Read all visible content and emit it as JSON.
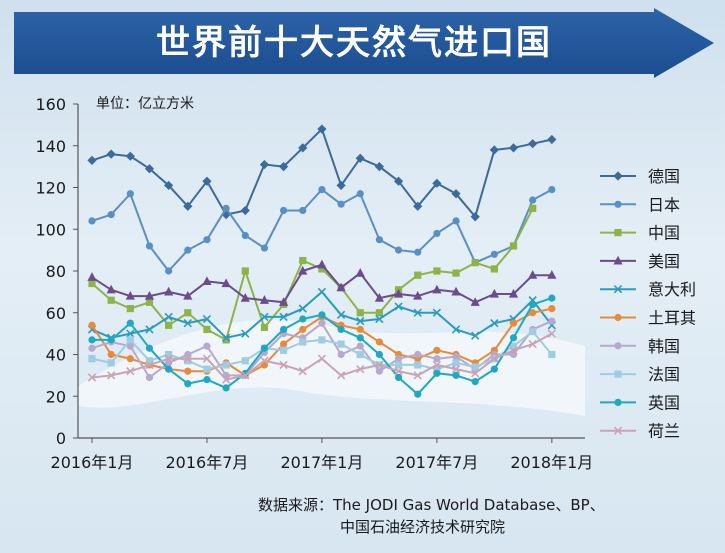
{
  "banner": {
    "title": "世界前十大天然气进口国"
  },
  "source": {
    "line1": "数据来源：The JODI Gas World Database、BP、",
    "line2": "中国石油经济技术研究院"
  },
  "chart_data": {
    "type": "line",
    "unit_label": "单位：亿立方米",
    "x": [
      "2016-01",
      "2016-02",
      "2016-03",
      "2016-04",
      "2016-05",
      "2016-06",
      "2016-07",
      "2016-08",
      "2016-09",
      "2016-10",
      "2016-11",
      "2016-12",
      "2017-01",
      "2017-02",
      "2017-03",
      "2017-04",
      "2017-05",
      "2017-06",
      "2017-07",
      "2017-08",
      "2017-09",
      "2017-10",
      "2017-11",
      "2017-12",
      "2018-01",
      "2018-02"
    ],
    "x_tick_labels": [
      {
        "x": "2016-01",
        "label": "2016年1月"
      },
      {
        "x": "2016-07",
        "label": "2016年7月"
      },
      {
        "x": "2017-01",
        "label": "2017年1月"
      },
      {
        "x": "2017-07",
        "label": "2017年7月"
      },
      {
        "x": "2018-01",
        "label": "2018年1月"
      }
    ],
    "ylim": [
      0,
      160
    ],
    "y_ticks": [
      0,
      20,
      40,
      60,
      80,
      100,
      120,
      140,
      160
    ],
    "grid": false,
    "legend": "right",
    "series": [
      {
        "name": "德国",
        "color": "#3c6a9a",
        "marker": "diamond",
        "values": [
          133,
          136,
          135,
          129,
          121,
          111,
          123,
          107,
          109,
          131,
          130,
          139,
          148,
          121,
          134,
          130,
          123,
          111,
          122,
          117,
          106,
          138,
          139,
          141,
          143,
          null
        ]
      },
      {
        "name": "日本",
        "color": "#5a8fc4",
        "marker": "circle",
        "values": [
          104,
          107,
          117,
          92,
          80,
          90,
          95,
          110,
          97,
          91,
          109,
          109,
          119,
          112,
          117,
          95,
          90,
          89,
          98,
          104,
          84,
          88,
          92,
          114,
          119,
          null
        ]
      },
      {
        "name": "中国",
        "color": "#8db34a",
        "marker": "square",
        "values": [
          74,
          66,
          62,
          65,
          54,
          60,
          52,
          47,
          80,
          53,
          64,
          85,
          81,
          72,
          60,
          60,
          71,
          78,
          80,
          79,
          84,
          81,
          92,
          110,
          null,
          null
        ]
      },
      {
        "name": "美国",
        "color": "#6b4c8c",
        "marker": "triangle",
        "values": [
          77,
          71,
          68,
          68,
          70,
          68,
          75,
          74,
          67,
          66,
          65,
          80,
          83,
          72,
          79,
          67,
          69,
          68,
          71,
          70,
          65,
          69,
          69,
          78,
          78,
          null
        ]
      },
      {
        "name": "意大利",
        "color": "#2a9bbf",
        "marker": "x",
        "values": [
          52,
          48,
          50,
          52,
          58,
          55,
          57,
          48,
          50,
          58,
          58,
          62,
          70,
          59,
          56,
          57,
          63,
          60,
          60,
          52,
          49,
          55,
          57,
          66,
          54,
          null
        ]
      },
      {
        "name": "土耳其",
        "color": "#e68a3c",
        "marker": "circle",
        "values": [
          54,
          40,
          38,
          35,
          33,
          32,
          32,
          36,
          30,
          35,
          45,
          52,
          58,
          54,
          52,
          46,
          40,
          38,
          42,
          40,
          36,
          42,
          55,
          60,
          62,
          null
        ]
      },
      {
        "name": "韩国",
        "color": "#b7a8cf",
        "marker": "circle",
        "values": [
          43,
          46,
          44,
          29,
          36,
          40,
          44,
          30,
          30,
          41,
          50,
          48,
          55,
          40,
          44,
          32,
          38,
          40,
          38,
          39,
          33,
          40,
          40,
          52,
          56,
          null
        ]
      },
      {
        "name": "法国",
        "color": "#9fcbe3",
        "marker": "square",
        "values": [
          38,
          36,
          47,
          37,
          40,
          37,
          33,
          35,
          37,
          43,
          42,
          46,
          47,
          45,
          40,
          35,
          35,
          35,
          33,
          36,
          34,
          38,
          44,
          51,
          40,
          null
        ]
      },
      {
        "name": "英国",
        "color": "#1fa8c4",
        "marker": "circle",
        "values": [
          47,
          47,
          55,
          43,
          33,
          26,
          28,
          24,
          31,
          43,
          52,
          57,
          59,
          52,
          48,
          40,
          29,
          21,
          31,
          30,
          27,
          33,
          48,
          64,
          67,
          null
        ]
      },
      {
        "name": "荷兰",
        "color": "#c9a3b4",
        "marker": "x",
        "values": [
          29,
          30,
          32,
          35,
          38,
          38,
          38,
          28,
          30,
          37,
          35,
          32,
          38,
          30,
          33,
          35,
          32,
          30,
          35,
          33,
          31,
          38,
          42,
          45,
          50,
          null
        ]
      }
    ]
  }
}
